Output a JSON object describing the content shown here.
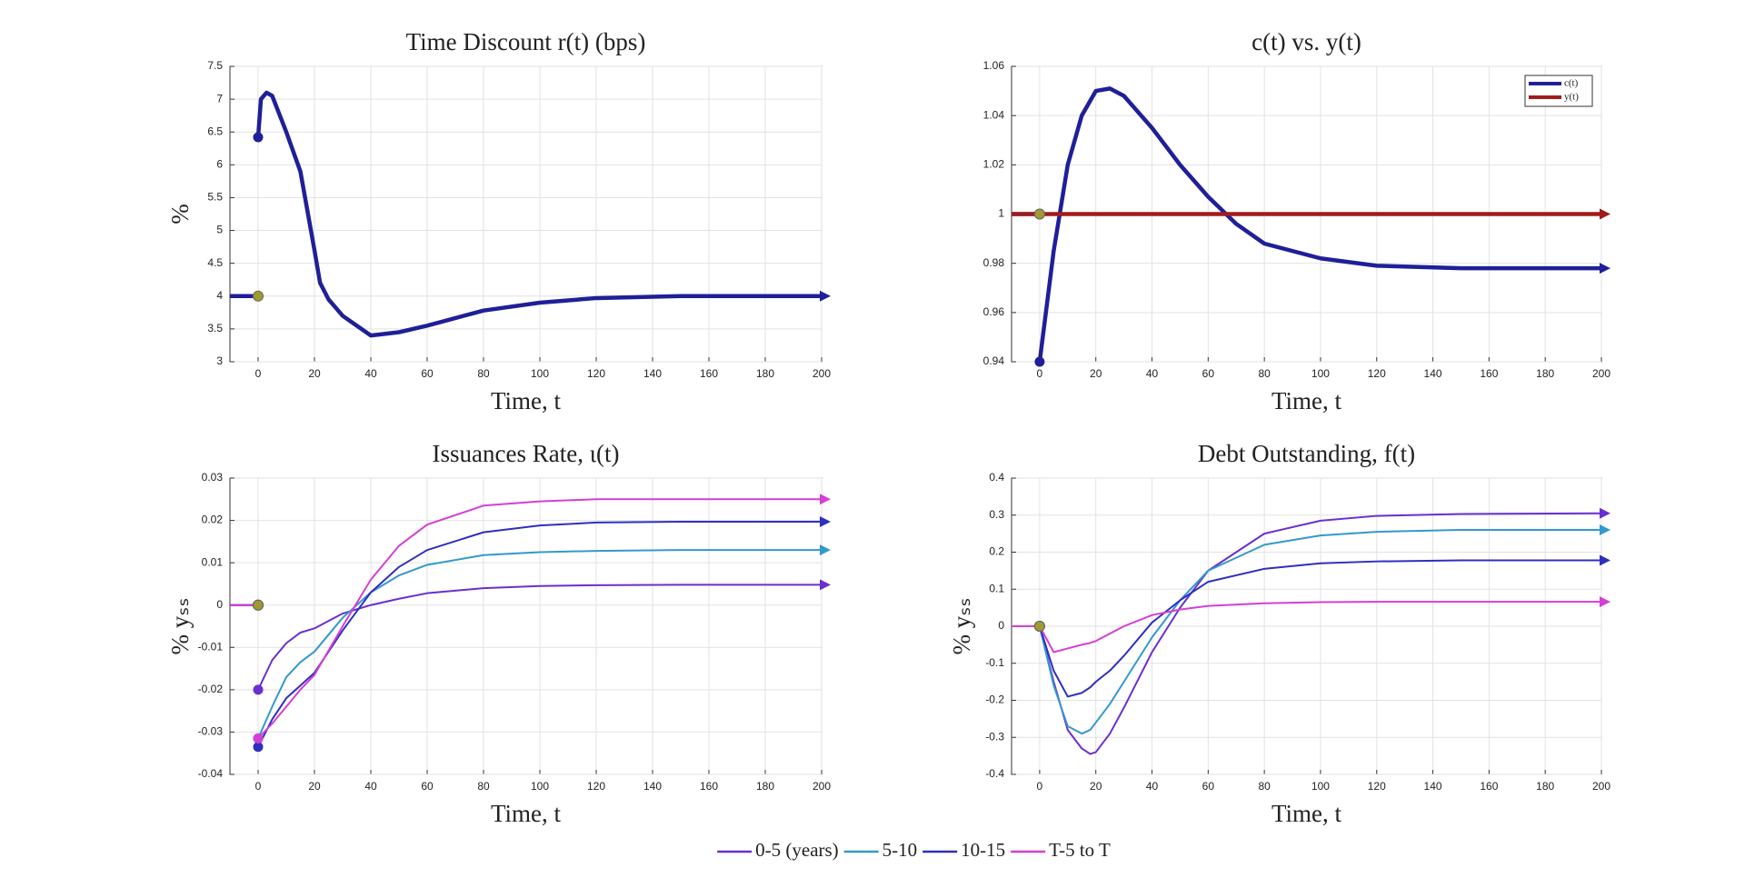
{
  "chart_data": [
    {
      "type": "line",
      "title": "Time Discount r(t) (bps)",
      "xlabel": "Time, t",
      "ylabel": "%",
      "xlim": [
        -10,
        200
      ],
      "xticks": [
        0,
        20,
        40,
        60,
        80,
        100,
        120,
        140,
        160,
        180,
        200
      ],
      "ylim": [
        3,
        7.5
      ],
      "yticks": [
        3,
        3.5,
        4,
        4.5,
        5,
        5.5,
        6,
        6.5,
        7,
        7.5
      ],
      "grid": true,
      "x": [
        0,
        1,
        3,
        5,
        10,
        15,
        20,
        22,
        25,
        30,
        40,
        50,
        60,
        80,
        100,
        120,
        150,
        200
      ],
      "series": [
        {
          "color": "#1f1f99",
          "steady": 4,
          "values": [
            6.42,
            7.0,
            7.1,
            7.05,
            6.5,
            5.9,
            4.7,
            4.2,
            3.95,
            3.7,
            3.4,
            3.45,
            3.55,
            3.78,
            3.9,
            3.97,
            4.0,
            4.0
          ]
        }
      ]
    },
    {
      "type": "line",
      "title": "c(t) vs. y(t)",
      "xlabel": "Time, t",
      "xlim": [
        -10,
        200
      ],
      "xticks": [
        0,
        20,
        40,
        60,
        80,
        100,
        120,
        140,
        160,
        180,
        200
      ],
      "ylim": [
        0.94,
        1.06
      ],
      "yticks": [
        0.94,
        0.96,
        0.98,
        1,
        1.02,
        1.04,
        1.06
      ],
      "grid": true,
      "legend": "top-right",
      "x": [
        0,
        5,
        10,
        15,
        20,
        25,
        30,
        40,
        50,
        60,
        70,
        80,
        100,
        120,
        150,
        200
      ],
      "series": [
        {
          "name": "c(t)",
          "color": "#1f1f99",
          "steady": 1,
          "values": [
            0.94,
            0.985,
            1.02,
            1.04,
            1.05,
            1.051,
            1.048,
            1.035,
            1.02,
            1.007,
            0.996,
            0.988,
            0.982,
            0.979,
            0.978,
            0.978
          ]
        },
        {
          "name": "y(t)",
          "color": "#a01c1c",
          "steady": 1,
          "values": [
            1,
            1,
            1,
            1,
            1,
            1,
            1,
            1,
            1,
            1,
            1,
            1,
            1,
            1,
            1,
            1
          ]
        }
      ]
    },
    {
      "type": "line",
      "title": "Issuances Rate, ι(t)",
      "xlabel": "Time, t",
      "ylabel": "% yₛₛ",
      "xlim": [
        -10,
        200
      ],
      "xticks": [
        0,
        20,
        40,
        60,
        80,
        100,
        120,
        140,
        160,
        180,
        200
      ],
      "ylim": [
        -0.04,
        0.03
      ],
      "yticks": [
        -0.04,
        -0.03,
        -0.02,
        -0.01,
        0,
        0.01,
        0.02,
        0.03
      ],
      "grid": true,
      "legend": "bottom",
      "x": [
        0,
        5,
        10,
        15,
        20,
        30,
        40,
        50,
        60,
        80,
        100,
        120,
        150,
        200
      ],
      "series": [
        {
          "name": "0-5 (years)",
          "color": "#6a2fd0",
          "steady": 0,
          "values": [
            -0.02,
            -0.013,
            -0.009,
            -0.0065,
            -0.0055,
            -0.002,
            0,
            0.0015,
            0.0028,
            0.004,
            0.0045,
            0.0047,
            0.0048,
            0.0048
          ]
        },
        {
          "name": "5-10",
          "color": "#3399cc",
          "steady": 0,
          "values": [
            -0.0315,
            -0.024,
            -0.017,
            -0.0135,
            -0.011,
            -0.003,
            0.003,
            0.007,
            0.0095,
            0.0118,
            0.0125,
            0.0128,
            0.013,
            0.013
          ]
        },
        {
          "name": "10-15",
          "color": "#2f2fbf",
          "steady": 0,
          "values": [
            -0.0335,
            -0.027,
            -0.022,
            -0.019,
            -0.016,
            -0.006,
            0.003,
            0.009,
            0.013,
            0.0172,
            0.0188,
            0.0195,
            0.0197,
            0.0197
          ]
        },
        {
          "name": "T-5 to T",
          "color": "#d43fd4",
          "steady": 0,
          "values": [
            -0.0315,
            -0.028,
            -0.024,
            -0.02,
            -0.0165,
            -0.005,
            0.006,
            0.014,
            0.019,
            0.0235,
            0.0245,
            0.025,
            0.025,
            0.025
          ]
        }
      ]
    },
    {
      "type": "line",
      "title": "Debt Outstanding, f(t)",
      "xlabel": "Time, t",
      "ylabel": "% yₛₛ",
      "xlim": [
        -10,
        200
      ],
      "xticks": [
        0,
        20,
        40,
        60,
        80,
        100,
        120,
        140,
        160,
        180,
        200
      ],
      "ylim": [
        -0.4,
        0.4
      ],
      "yticks": [
        -0.4,
        -0.3,
        -0.2,
        -0.1,
        0,
        0.1,
        0.2,
        0.3,
        0.4
      ],
      "grid": true,
      "x": [
        0,
        5,
        10,
        15,
        18,
        20,
        25,
        30,
        40,
        50,
        60,
        80,
        100,
        120,
        150,
        200
      ],
      "series": [
        {
          "color": "#6a2fd0",
          "steady": 0,
          "values": [
            0,
            -0.15,
            -0.28,
            -0.33,
            -0.345,
            -0.34,
            -0.29,
            -0.22,
            -0.07,
            0.05,
            0.15,
            0.25,
            0.285,
            0.298,
            0.303,
            0.305
          ]
        },
        {
          "color": "#3399cc",
          "steady": 0,
          "values": [
            0,
            -0.16,
            -0.27,
            -0.29,
            -0.28,
            -0.26,
            -0.21,
            -0.15,
            -0.03,
            0.07,
            0.15,
            0.22,
            0.245,
            0.255,
            0.26,
            0.26
          ]
        },
        {
          "color": "#2f2fbf",
          "steady": 0,
          "values": [
            0,
            -0.12,
            -0.19,
            -0.18,
            -0.165,
            -0.15,
            -0.12,
            -0.08,
            0.01,
            0.07,
            0.12,
            0.155,
            0.17,
            0.175,
            0.178,
            0.178
          ]
        },
        {
          "color": "#d43fd4",
          "steady": 0,
          "values": [
            0,
            -0.07,
            -0.06,
            -0.05,
            -0.045,
            -0.04,
            -0.02,
            0,
            0.03,
            0.045,
            0.055,
            0.062,
            0.065,
            0.066,
            0.066,
            0.066
          ]
        }
      ]
    }
  ]
}
